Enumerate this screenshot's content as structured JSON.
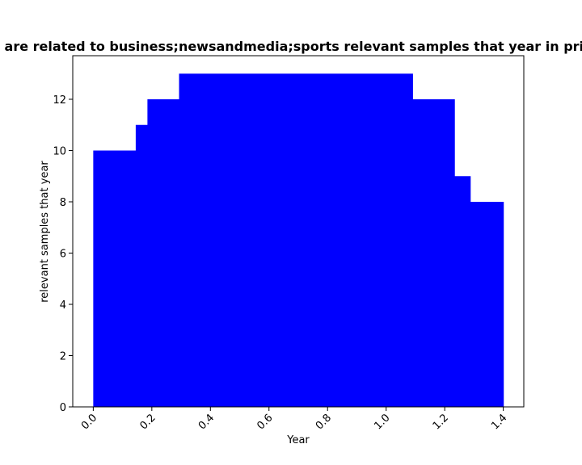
{
  "chart_data": {
    "type": "area",
    "title": "are related to business;newsandmedia;sports relevant samples that year in priv",
    "xlabel": "Year",
    "ylabel": "relevant samples that year",
    "xlim": [
      -0.07,
      1.47
    ],
    "ylim": [
      0,
      13.7
    ],
    "x_ticks": [
      "0.0",
      "0.2",
      "0.4",
      "0.6",
      "0.8",
      "1.0",
      "1.2",
      "1.4"
    ],
    "y_ticks": [
      "0",
      "2",
      "4",
      "6",
      "8",
      "10",
      "12"
    ],
    "step_edges": [
      0.0,
      0.145,
      0.185,
      0.293,
      1.09,
      1.233,
      1.287,
      1.4
    ],
    "values": [
      10,
      11,
      12,
      13,
      12,
      9,
      8
    ],
    "color": "#0000ff",
    "grid": false
  }
}
